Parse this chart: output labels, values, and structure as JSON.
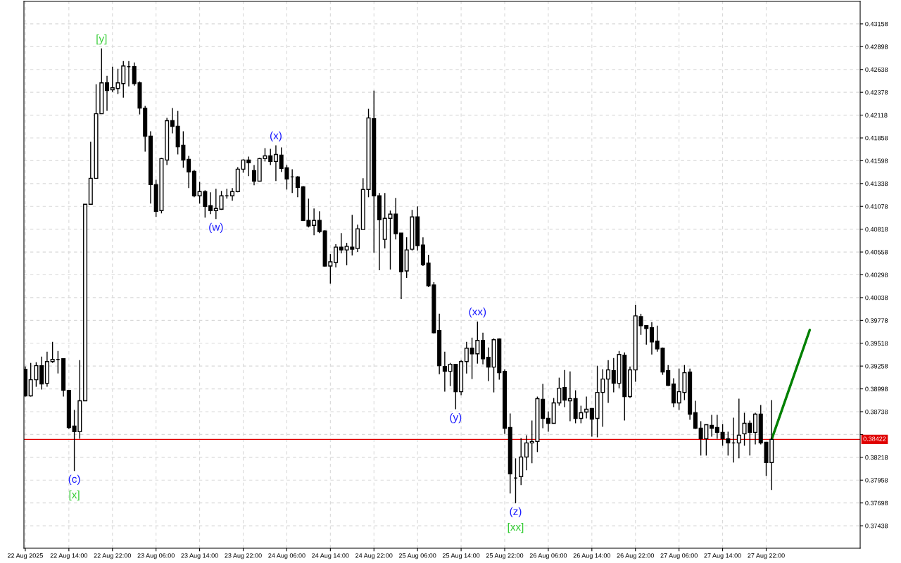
{
  "chart_data": {
    "type": "candlestick",
    "x": [
      "2025-08-22T06:00",
      "2025-08-22T07:00",
      "2025-08-22T08:00",
      "2025-08-22T09:00",
      "2025-08-22T10:00",
      "2025-08-22T11:00",
      "2025-08-22T12:00",
      "2025-08-22T13:00",
      "2025-08-22T14:00",
      "2025-08-22T15:00",
      "2025-08-22T16:00",
      "2025-08-22T17:00",
      "2025-08-22T18:00",
      "2025-08-22T19:00",
      "2025-08-22T20:00",
      "2025-08-22T21:00",
      "2025-08-22T22:00",
      "2025-08-22T23:00",
      "2025-08-23T00:00",
      "2025-08-23T01:00",
      "2025-08-23T02:00",
      "2025-08-23T03:00",
      "2025-08-23T04:00",
      "2025-08-23T05:00",
      "2025-08-23T06:00",
      "2025-08-23T07:00",
      "2025-08-23T08:00",
      "2025-08-23T09:00",
      "2025-08-23T10:00",
      "2025-08-23T11:00",
      "2025-08-23T12:00",
      "2025-08-23T13:00",
      "2025-08-23T14:00",
      "2025-08-23T15:00",
      "2025-08-23T16:00",
      "2025-08-23T17:00",
      "2025-08-23T18:00",
      "2025-08-23T19:00",
      "2025-08-23T20:00",
      "2025-08-23T21:00",
      "2025-08-23T22:00",
      "2025-08-23T23:00",
      "2025-08-24T00:00",
      "2025-08-24T01:00",
      "2025-08-24T02:00",
      "2025-08-24T03:00",
      "2025-08-24T04:00",
      "2025-08-24T05:00",
      "2025-08-24T06:00",
      "2025-08-24T07:00",
      "2025-08-24T08:00",
      "2025-08-24T09:00",
      "2025-08-24T10:00",
      "2025-08-24T11:00",
      "2025-08-24T12:00",
      "2025-08-24T13:00",
      "2025-08-24T14:00",
      "2025-08-24T15:00",
      "2025-08-24T16:00",
      "2025-08-24T17:00",
      "2025-08-24T18:00",
      "2025-08-24T19:00",
      "2025-08-24T20:00",
      "2025-08-24T21:00",
      "2025-08-24T22:00",
      "2025-08-24T23:00",
      "2025-08-25T00:00",
      "2025-08-25T01:00",
      "2025-08-25T02:00",
      "2025-08-25T03:00",
      "2025-08-25T04:00",
      "2025-08-25T05:00",
      "2025-08-25T06:00",
      "2025-08-25T07:00",
      "2025-08-25T08:00",
      "2025-08-25T09:00",
      "2025-08-25T10:00",
      "2025-08-25T11:00",
      "2025-08-25T12:00",
      "2025-08-25T13:00",
      "2025-08-25T14:00",
      "2025-08-25T15:00",
      "2025-08-25T16:00",
      "2025-08-25T17:00",
      "2025-08-25T18:00",
      "2025-08-25T19:00",
      "2025-08-25T20:00",
      "2025-08-25T21:00",
      "2025-08-25T22:00",
      "2025-08-25T23:00",
      "2025-08-26T00:00",
      "2025-08-26T01:00",
      "2025-08-26T02:00",
      "2025-08-26T03:00",
      "2025-08-26T04:00",
      "2025-08-26T05:00",
      "2025-08-26T06:00",
      "2025-08-26T07:00",
      "2025-08-26T08:00",
      "2025-08-26T09:00",
      "2025-08-26T10:00",
      "2025-08-26T11:00",
      "2025-08-26T12:00",
      "2025-08-26T13:00",
      "2025-08-26T14:00",
      "2025-08-26T15:00",
      "2025-08-26T16:00",
      "2025-08-26T17:00",
      "2025-08-26T18:00",
      "2025-08-26T19:00",
      "2025-08-26T20:00",
      "2025-08-26T21:00",
      "2025-08-26T22:00",
      "2025-08-26T23:00",
      "2025-08-27T00:00",
      "2025-08-27T01:00",
      "2025-08-27T02:00",
      "2025-08-27T03:00",
      "2025-08-27T04:00",
      "2025-08-27T05:00",
      "2025-08-27T06:00",
      "2025-08-27T07:00",
      "2025-08-27T08:00",
      "2025-08-27T09:00",
      "2025-08-27T10:00",
      "2025-08-27T11:00",
      "2025-08-27T12:00",
      "2025-08-27T13:00",
      "2025-08-27T14:00",
      "2025-08-27T15:00",
      "2025-08-27T16:00",
      "2025-08-27T17:00",
      "2025-08-27T18:00",
      "2025-08-27T19:00",
      "2025-08-27T20:00",
      "2025-08-27T21:00",
      "2025-08-27T22:00",
      "2025-08-27T23:00"
    ],
    "ohlc": [
      [
        0.39222,
        0.39254,
        0.3891,
        0.38918
      ],
      [
        0.38918,
        0.39294,
        0.3891,
        0.39102
      ],
      [
        0.39102,
        0.39302,
        0.39022,
        0.39262
      ],
      [
        0.39262,
        0.39366,
        0.3899,
        0.39054
      ],
      [
        0.39062,
        0.39422,
        0.39022,
        0.3931
      ],
      [
        0.3931,
        0.39534,
        0.39294,
        0.39334
      ],
      [
        0.39334,
        0.3943,
        0.39174,
        0.39334
      ],
      [
        0.39342,
        0.39342,
        0.3891,
        0.38982
      ],
      [
        0.38982,
        0.38982,
        0.38542,
        0.38558
      ],
      [
        0.38574,
        0.38758,
        0.38062,
        0.3851
      ],
      [
        0.3851,
        0.39326,
        0.3843,
        0.38862
      ],
      [
        0.38862,
        0.41102,
        0.38862,
        0.41102
      ],
      [
        0.41102,
        0.41814,
        0.41102,
        0.41398
      ],
      [
        0.41398,
        0.4247,
        0.41398,
        0.42134
      ],
      [
        0.42134,
        0.42878,
        0.42134,
        0.42486
      ],
      [
        0.42486,
        0.42566,
        0.42166,
        0.42398
      ],
      [
        0.42406,
        0.4267,
        0.42382,
        0.4243
      ],
      [
        0.42422,
        0.42646,
        0.42358,
        0.42486
      ],
      [
        0.42478,
        0.42734,
        0.42318,
        0.42678
      ],
      [
        0.4267,
        0.42734,
        0.42446,
        0.4267
      ],
      [
        0.4267,
        0.42718,
        0.42454,
        0.42478
      ],
      [
        0.42486,
        0.42502,
        0.42126,
        0.42198
      ],
      [
        0.42198,
        0.42222,
        0.41702,
        0.41878
      ],
      [
        0.41878,
        0.41934,
        0.4111,
        0.41326
      ],
      [
        0.41326,
        0.41382,
        0.40958,
        0.41022
      ],
      [
        0.4103,
        0.4163,
        0.40998,
        0.41622
      ],
      [
        0.41606,
        0.42086,
        0.4155,
        0.42054
      ],
      [
        0.42054,
        0.42198,
        0.4191,
        0.4199
      ],
      [
        0.4199,
        0.42166,
        0.4167,
        0.41758
      ],
      [
        0.41774,
        0.41934,
        0.41518,
        0.41606
      ],
      [
        0.41614,
        0.41654,
        0.41286,
        0.4147
      ],
      [
        0.41478,
        0.41494,
        0.41182,
        0.41198
      ],
      [
        0.41198,
        0.41358,
        0.4111,
        0.41246
      ],
      [
        0.41246,
        0.41262,
        0.4095,
        0.41078
      ],
      [
        0.41086,
        0.41238,
        0.4099,
        0.4103
      ],
      [
        0.4103,
        0.41278,
        0.40934,
        0.41054
      ],
      [
        0.41046,
        0.41254,
        0.41038,
        0.41198
      ],
      [
        0.41198,
        0.41278,
        0.41166,
        0.41198
      ],
      [
        0.41198,
        0.41286,
        0.41142,
        0.41246
      ],
      [
        0.41246,
        0.41526,
        0.41238,
        0.41502
      ],
      [
        0.41502,
        0.41614,
        0.41462,
        0.41606
      ],
      [
        0.41606,
        0.41646,
        0.41422,
        0.41574
      ],
      [
        0.41486,
        0.4155,
        0.41318,
        0.41366
      ],
      [
        0.41366,
        0.4163,
        0.41366,
        0.41622
      ],
      [
        0.41622,
        0.41742,
        0.4159,
        0.41654
      ],
      [
        0.41654,
        0.41734,
        0.4155,
        0.4159
      ],
      [
        0.4159,
        0.41774,
        0.41366,
        0.4167
      ],
      [
        0.41662,
        0.4175,
        0.4147,
        0.4151
      ],
      [
        0.41518,
        0.4155,
        0.4127,
        0.4139
      ],
      [
        0.41414,
        0.41502,
        0.4123,
        0.41414
      ],
      [
        0.41414,
        0.41422,
        0.41182,
        0.41294
      ],
      [
        0.41302,
        0.4131,
        0.4091,
        0.40918
      ],
      [
        0.40918,
        0.41166,
        0.40838,
        0.40854
      ],
      [
        0.40862,
        0.41054,
        0.4075,
        0.40918
      ],
      [
        0.40918,
        0.41022,
        0.40774,
        0.4079
      ],
      [
        0.40798,
        0.40806,
        0.4039,
        0.40398
      ],
      [
        0.40398,
        0.40534,
        0.40198,
        0.40446
      ],
      [
        0.40438,
        0.40646,
        0.40382,
        0.40614
      ],
      [
        0.40614,
        0.40774,
        0.40542,
        0.40582
      ],
      [
        0.40582,
        0.40662,
        0.40406,
        0.40622
      ],
      [
        0.40614,
        0.40982,
        0.40518,
        0.4059
      ],
      [
        0.40598,
        0.4087,
        0.40558,
        0.40822
      ],
      [
        0.40814,
        0.41398,
        0.40814,
        0.4127
      ],
      [
        0.4127,
        0.4219,
        0.41182,
        0.42086
      ],
      [
        0.42078,
        0.42398,
        0.4055,
        0.41198
      ],
      [
        0.41198,
        0.4123,
        0.4035,
        0.40926
      ],
      [
        0.40702,
        0.4123,
        0.40598,
        0.40942
      ],
      [
        0.40942,
        0.4103,
        0.40358,
        0.4099
      ],
      [
        0.4099,
        0.41174,
        0.40702,
        0.40766
      ],
      [
        0.40774,
        0.40774,
        0.40022,
        0.40334
      ],
      [
        0.40342,
        0.40726,
        0.40262,
        0.40582
      ],
      [
        0.4059,
        0.41038,
        0.40574,
        0.40958
      ],
      [
        0.40958,
        0.41078,
        0.40574,
        0.4063
      ],
      [
        0.40638,
        0.40726,
        0.40398,
        0.40414
      ],
      [
        0.4043,
        0.40526,
        0.40158,
        0.40174
      ],
      [
        0.40182,
        0.40214,
        0.3963,
        0.39638
      ],
      [
        0.39662,
        0.39854,
        0.39166,
        0.39262
      ],
      [
        0.39254,
        0.39422,
        0.38966,
        0.39198
      ],
      [
        0.39198,
        0.39294,
        0.3903,
        0.39278
      ],
      [
        0.39278,
        0.39278,
        0.38766,
        0.38966
      ],
      [
        0.38966,
        0.39326,
        0.38926,
        0.3931
      ],
      [
        0.3931,
        0.39534,
        0.39174,
        0.39462
      ],
      [
        0.39462,
        0.39582,
        0.3911,
        0.39398
      ],
      [
        0.39398,
        0.39766,
        0.39286,
        0.3955
      ],
      [
        0.3955,
        0.39638,
        0.39278,
        0.39342
      ],
      [
        0.39358,
        0.3947,
        0.39086,
        0.39246
      ],
      [
        0.39246,
        0.39574,
        0.38958,
        0.39558
      ],
      [
        0.39566,
        0.39574,
        0.39102,
        0.39182
      ],
      [
        0.39198,
        0.39222,
        0.38486,
        0.3855
      ],
      [
        0.38558,
        0.38718,
        0.37806,
        0.3803
      ],
      [
        0.37982,
        0.38206,
        0.37694,
        0.37982
      ],
      [
        0.37998,
        0.38438,
        0.37902,
        0.38222
      ],
      [
        0.38222,
        0.3847,
        0.3807,
        0.38382
      ],
      [
        0.38382,
        0.38638,
        0.3815,
        0.38398
      ],
      [
        0.38398,
        0.3891,
        0.38278,
        0.38886
      ],
      [
        0.38878,
        0.39054,
        0.3855,
        0.38662
      ],
      [
        0.38662,
        0.38742,
        0.3851,
        0.38606
      ],
      [
        0.38606,
        0.38894,
        0.38606,
        0.38838
      ],
      [
        0.38838,
        0.39126,
        0.38806,
        0.39006
      ],
      [
        0.39014,
        0.39214,
        0.3879,
        0.3887
      ],
      [
        0.38862,
        0.39198,
        0.3863,
        0.38886
      ],
      [
        0.38886,
        0.38982,
        0.38606,
        0.38662
      ],
      [
        0.38662,
        0.38806,
        0.38606,
        0.38726
      ],
      [
        0.38734,
        0.3891,
        0.38662,
        0.38766
      ],
      [
        0.38774,
        0.38774,
        0.38454,
        0.38654
      ],
      [
        0.38662,
        0.39262,
        0.38446,
        0.38958
      ],
      [
        0.38958,
        0.39222,
        0.38566,
        0.3911
      ],
      [
        0.3911,
        0.39326,
        0.38838,
        0.39214
      ],
      [
        0.39206,
        0.3935,
        0.38958,
        0.39062
      ],
      [
        0.39062,
        0.3943,
        0.39006,
        0.3939
      ],
      [
        0.39382,
        0.39414,
        0.38638,
        0.3891
      ],
      [
        0.3891,
        0.39254,
        0.38894,
        0.39214
      ],
      [
        0.39214,
        0.39958,
        0.39078,
        0.3983
      ],
      [
        0.39822,
        0.39854,
        0.39614,
        0.39718
      ],
      [
        0.39718,
        0.39718,
        0.39502,
        0.39686
      ],
      [
        0.39694,
        0.39758,
        0.3939,
        0.39534
      ],
      [
        0.39542,
        0.39718,
        0.39422,
        0.39454
      ],
      [
        0.39462,
        0.3947,
        0.39158,
        0.3919
      ],
      [
        0.39206,
        0.3927,
        0.3903,
        0.39038
      ],
      [
        0.39054,
        0.39118,
        0.3879,
        0.38838
      ],
      [
        0.38838,
        0.3923,
        0.38758,
        0.38966
      ],
      [
        0.38958,
        0.3927,
        0.3887,
        0.39182
      ],
      [
        0.3919,
        0.3923,
        0.38646,
        0.3871
      ],
      [
        0.38726,
        0.38862,
        0.38542,
        0.3855
      ],
      [
        0.3855,
        0.3863,
        0.38238,
        0.3843
      ],
      [
        0.3843,
        0.3859,
        0.38238,
        0.3859
      ],
      [
        0.38582,
        0.38702,
        0.38454,
        0.3855
      ],
      [
        0.38558,
        0.38702,
        0.3843,
        0.38502
      ],
      [
        0.38502,
        0.38598,
        0.3835,
        0.3843
      ],
      [
        0.3843,
        0.3851,
        0.38238,
        0.38382
      ],
      [
        0.38382,
        0.3867,
        0.38158,
        0.38382
      ],
      [
        0.38382,
        0.38886,
        0.38206,
        0.3847
      ],
      [
        0.38486,
        0.38726,
        0.3835,
        0.38606
      ],
      [
        0.38606,
        0.38638,
        0.38238,
        0.38502
      ],
      [
        0.38502,
        0.38726,
        0.38366,
        0.3871
      ],
      [
        0.3871,
        0.38814,
        0.38366,
        0.38382
      ],
      [
        0.3839,
        0.3839,
        0.38006,
        0.38158
      ],
      [
        0.38158,
        0.3887,
        0.37846,
        0.38422
      ]
    ],
    "series": [
      {
        "type": "line",
        "color": "#008000",
        "x": [
          "2025-08-27T23:00",
          "2025-08-28T06:00"
        ],
        "values": [
          0.38422,
          0.3967
        ]
      }
    ],
    "xlim": [
      "2025-08-22T05:45",
      "2025-08-28T15:15"
    ],
    "xticks": [
      {
        "value": "2025-08-22T06:00",
        "label": "22 Aug 2025"
      },
      {
        "value": "2025-08-22T14:00",
        "label": "22 Aug 14:00"
      },
      {
        "value": "2025-08-22T22:00",
        "label": "22 Aug 22:00"
      },
      {
        "value": "2025-08-23T06:00",
        "label": "23 Aug 06:00"
      },
      {
        "value": "2025-08-23T14:00",
        "label": "23 Aug 14:00"
      },
      {
        "value": "2025-08-23T22:00",
        "label": "23 Aug 22:00"
      },
      {
        "value": "2025-08-24T06:00",
        "label": "24 Aug 06:00"
      },
      {
        "value": "2025-08-24T14:00",
        "label": "24 Aug 14:00"
      },
      {
        "value": "2025-08-24T22:00",
        "label": "24 Aug 22:00"
      },
      {
        "value": "2025-08-25T06:00",
        "label": "25 Aug 06:00"
      },
      {
        "value": "2025-08-25T14:00",
        "label": "25 Aug 14:00"
      },
      {
        "value": "2025-08-25T22:00",
        "label": "25 Aug 22:00"
      },
      {
        "value": "2025-08-26T06:00",
        "label": "26 Aug 06:00"
      },
      {
        "value": "2025-08-26T14:00",
        "label": "26 Aug 14:00"
      },
      {
        "value": "2025-08-26T22:00",
        "label": "26 Aug 22:00"
      },
      {
        "value": "2025-08-27T06:00",
        "label": "27 Aug 06:00"
      },
      {
        "value": "2025-08-27T14:00",
        "label": "27 Aug 14:00"
      },
      {
        "value": "2025-08-27T22:00",
        "label": "27 Aug 22:00"
      }
    ],
    "ylim": [
      0.37182,
      0.43414
    ],
    "yticks": [
      0.43158,
      0.42898,
      0.42638,
      0.42378,
      0.42118,
      0.41858,
      0.41598,
      0.41338,
      0.41078,
      0.40818,
      0.40558,
      0.40298,
      0.40038,
      0.39778,
      0.39518,
      0.39258,
      0.38998,
      0.38738,
      {
        "value": 0.38478,
        "label": null
      },
      0.38218,
      0.37958,
      0.37698,
      0.37438
    ],
    "ref_lines": [
      {
        "axis": "y",
        "value": 0.38422,
        "label": "0.38422",
        "color": "#e00000"
      }
    ],
    "annotations": [
      {
        "text": "(c)",
        "x": "2025-08-22T15:00",
        "y": 0.38062
      },
      {
        "text": "[x]",
        "x": "2025-08-22T15:00",
        "y": 0.38062
      },
      {
        "text": "[y]",
        "x": "2025-08-22T20:00",
        "y": 0.42878
      },
      {
        "text": "(w)",
        "x": "2025-08-23T17:00",
        "y": 0.40934
      },
      {
        "text": "(x)",
        "x": "2025-08-24T04:00",
        "y": 0.41774
      },
      {
        "text": "(y)",
        "x": "2025-08-25T13:00",
        "y": 0.38766
      },
      {
        "text": "(xx)",
        "x": "2025-08-25T17:00",
        "y": 0.39766
      },
      {
        "text": "(z)",
        "x": "2025-08-26T00:00",
        "y": 0.37694
      },
      {
        "text": "[xx]",
        "x": "2025-08-26T00:00",
        "y": 0.37694
      }
    ],
    "grid": true
  }
}
